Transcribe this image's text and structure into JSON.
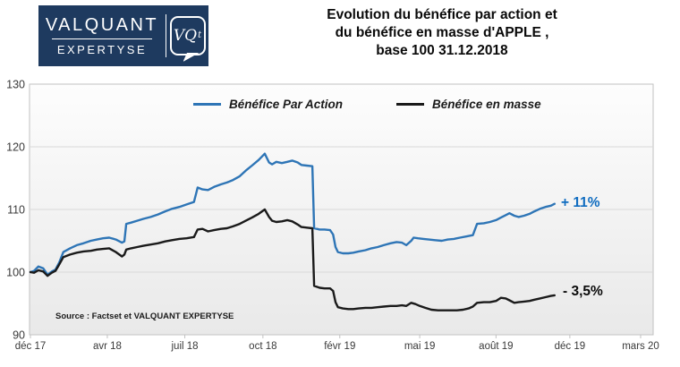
{
  "header": {
    "logo": {
      "line1": "VALQUANT",
      "line2": "EXPERTYSE",
      "emblem_text": "VQ",
      "emblem_sup": "t"
    },
    "title_lines": [
      "Evolution du bénéfice par action et",
      "du bénéfice en masse d'APPLE ,",
      "base 100 31.12.2018"
    ]
  },
  "colors": {
    "logo_navy": "#1e3a5f",
    "series_blue": "#2e75b6",
    "series_black": "#1a1a1a",
    "annotation_blue": "#0f6cc0",
    "annotation_black": "#0a0a0a",
    "gridline": "#d9d9d9",
    "plot_border": "#c2c2c2",
    "axis_text": "#3a3a3a"
  },
  "chart_data": {
    "type": "line",
    "title": "Evolution du bénéfice par action et du bénéfice en masse d'APPLE , base 100 31.12.2018",
    "xlabel": "",
    "ylabel": "",
    "ylim": [
      90,
      130
    ],
    "y_ticks": [
      90,
      100,
      110,
      120,
      130
    ],
    "grid": "horizontal",
    "legend_position": "top-center",
    "x_tick_labels": [
      "déc 17",
      "avr 18",
      "juil 18",
      "oct 18",
      "févr 19",
      "mai 19",
      "août 19",
      "déc 19",
      "mars 20"
    ],
    "x_tick_pos_pct": [
      0,
      12.6,
      25.3,
      38.1,
      50.7,
      63.8,
      76.3,
      88.4,
      100
    ],
    "source_note": "Source : Factset et VALQUANT EXPERTYSE",
    "series": [
      {
        "name": "Bénéfice Par Action",
        "color": "#2e75b6",
        "end_label": "+ 11%",
        "points": [
          [
            0,
            100
          ],
          [
            0.6,
            100.2
          ],
          [
            1.3,
            100.9
          ],
          [
            2.1,
            100.6
          ],
          [
            2.8,
            99.6
          ],
          [
            3.5,
            100.1
          ],
          [
            4.1,
            100.4
          ],
          [
            4.7,
            101.5
          ],
          [
            5.4,
            103.2
          ],
          [
            6.5,
            103.8
          ],
          [
            7.6,
            104.3
          ],
          [
            8.7,
            104.6
          ],
          [
            9.9,
            105
          ],
          [
            10.9,
            105.2
          ],
          [
            11.9,
            105.4
          ],
          [
            12.9,
            105.5
          ],
          [
            14,
            105.2
          ],
          [
            15,
            104.7
          ],
          [
            15.4,
            104.9
          ],
          [
            15.7,
            107.7
          ],
          [
            16.5,
            107.9
          ],
          [
            17.5,
            108.2
          ],
          [
            18.5,
            108.5
          ],
          [
            19.7,
            108.8
          ],
          [
            20.9,
            109.2
          ],
          [
            22.1,
            109.7
          ],
          [
            23.2,
            110.1
          ],
          [
            24.4,
            110.4
          ],
          [
            25.6,
            110.8
          ],
          [
            26.8,
            111.2
          ],
          [
            27.4,
            113.5
          ],
          [
            28.2,
            113.2
          ],
          [
            29.1,
            113.1
          ],
          [
            30.1,
            113.6
          ],
          [
            31.2,
            114
          ],
          [
            32.2,
            114.3
          ],
          [
            33.2,
            114.7
          ],
          [
            34.3,
            115.3
          ],
          [
            35.3,
            116.2
          ],
          [
            36.3,
            117
          ],
          [
            37.4,
            117.9
          ],
          [
            38.4,
            118.9
          ],
          [
            39.1,
            117.5
          ],
          [
            39.6,
            117.2
          ],
          [
            40.3,
            117.6
          ],
          [
            41.2,
            117.4
          ],
          [
            42.1,
            117.6
          ],
          [
            42.9,
            117.8
          ],
          [
            43.8,
            117.5
          ],
          [
            44.4,
            117.1
          ],
          [
            45.3,
            117
          ],
          [
            46.2,
            116.9
          ],
          [
            46.5,
            107
          ],
          [
            47.4,
            106.8
          ],
          [
            48.2,
            106.8
          ],
          [
            49.1,
            106.7
          ],
          [
            49.6,
            106
          ],
          [
            50,
            104
          ],
          [
            50.4,
            103.2
          ],
          [
            51.2,
            103
          ],
          [
            52.1,
            103
          ],
          [
            52.9,
            103.1
          ],
          [
            53.8,
            103.3
          ],
          [
            54.9,
            103.5
          ],
          [
            55.9,
            103.8
          ],
          [
            56.9,
            104
          ],
          [
            57.9,
            104.3
          ],
          [
            59,
            104.6
          ],
          [
            60,
            104.8
          ],
          [
            60.9,
            104.7
          ],
          [
            61.6,
            104.3
          ],
          [
            62.4,
            105
          ],
          [
            62.8,
            105.5
          ],
          [
            63.5,
            105.4
          ],
          [
            64.4,
            105.3
          ],
          [
            65.3,
            105.2
          ],
          [
            66.3,
            105.1
          ],
          [
            67.4,
            105
          ],
          [
            68.4,
            105.2
          ],
          [
            69.4,
            105.3
          ],
          [
            70.4,
            105.5
          ],
          [
            71.5,
            105.7
          ],
          [
            72.5,
            105.9
          ],
          [
            73.2,
            107.7
          ],
          [
            74.3,
            107.8
          ],
          [
            75.3,
            108
          ],
          [
            76.3,
            108.3
          ],
          [
            77.1,
            108.7
          ],
          [
            77.9,
            109.1
          ],
          [
            78.5,
            109.4
          ],
          [
            79.3,
            109
          ],
          [
            80,
            108.8
          ],
          [
            80.9,
            109
          ],
          [
            81.8,
            109.3
          ],
          [
            82.6,
            109.7
          ],
          [
            83.5,
            110.1
          ],
          [
            84.4,
            110.4
          ],
          [
            85.3,
            110.6
          ],
          [
            85.9,
            110.9
          ]
        ]
      },
      {
        "name": "Bénéfice en masse",
        "color": "#1a1a1a",
        "end_label": "- 3,5%",
        "points": [
          [
            0,
            100
          ],
          [
            0.6,
            99.9
          ],
          [
            1.3,
            100.3
          ],
          [
            2.1,
            100.1
          ],
          [
            2.8,
            99.4
          ],
          [
            3.5,
            99.9
          ],
          [
            4.1,
            100.2
          ],
          [
            4.7,
            101.2
          ],
          [
            5.4,
            102.4
          ],
          [
            6.5,
            102.8
          ],
          [
            7.6,
            103.1
          ],
          [
            8.7,
            103.3
          ],
          [
            9.9,
            103.4
          ],
          [
            10.9,
            103.6
          ],
          [
            11.9,
            103.7
          ],
          [
            12.9,
            103.8
          ],
          [
            14,
            103.2
          ],
          [
            15,
            102.5
          ],
          [
            15.4,
            102.8
          ],
          [
            15.7,
            103.6
          ],
          [
            16.5,
            103.8
          ],
          [
            17.5,
            104
          ],
          [
            18.5,
            104.2
          ],
          [
            19.7,
            104.4
          ],
          [
            20.9,
            104.6
          ],
          [
            22.1,
            104.9
          ],
          [
            23.2,
            105.1
          ],
          [
            24.4,
            105.3
          ],
          [
            25.6,
            105.4
          ],
          [
            26.8,
            105.6
          ],
          [
            27.4,
            106.8
          ],
          [
            28.2,
            106.9
          ],
          [
            29.1,
            106.5
          ],
          [
            30.1,
            106.7
          ],
          [
            31.2,
            106.9
          ],
          [
            32.2,
            107
          ],
          [
            33.2,
            107.3
          ],
          [
            34.3,
            107.7
          ],
          [
            35.3,
            108.2
          ],
          [
            36.3,
            108.7
          ],
          [
            37.4,
            109.3
          ],
          [
            38.4,
            110
          ],
          [
            39.1,
            108.8
          ],
          [
            39.6,
            108.2
          ],
          [
            40.3,
            108
          ],
          [
            41.2,
            108.1
          ],
          [
            42.1,
            108.3
          ],
          [
            42.9,
            108.1
          ],
          [
            43.8,
            107.6
          ],
          [
            44.4,
            107.2
          ],
          [
            45.3,
            107.1
          ],
          [
            46.2,
            107
          ],
          [
            46.5,
            97.8
          ],
          [
            47.4,
            97.5
          ],
          [
            48.2,
            97.4
          ],
          [
            49.1,
            97.4
          ],
          [
            49.6,
            97
          ],
          [
            50,
            95.2
          ],
          [
            50.4,
            94.4
          ],
          [
            51.2,
            94.2
          ],
          [
            52.1,
            94.1
          ],
          [
            52.9,
            94.1
          ],
          [
            53.8,
            94.2
          ],
          [
            54.9,
            94.3
          ],
          [
            55.9,
            94.3
          ],
          [
            56.9,
            94.4
          ],
          [
            57.9,
            94.5
          ],
          [
            59,
            94.6
          ],
          [
            60,
            94.6
          ],
          [
            60.9,
            94.7
          ],
          [
            61.6,
            94.6
          ],
          [
            62.4,
            95.1
          ],
          [
            63.1,
            94.9
          ],
          [
            63.8,
            94.6
          ],
          [
            64.7,
            94.3
          ],
          [
            65.7,
            94
          ],
          [
            66.8,
            93.9
          ],
          [
            67.8,
            93.9
          ],
          [
            68.8,
            93.9
          ],
          [
            69.9,
            93.9
          ],
          [
            70.9,
            94
          ],
          [
            71.8,
            94.2
          ],
          [
            72.5,
            94.5
          ],
          [
            73.2,
            95.1
          ],
          [
            74.3,
            95.2
          ],
          [
            75.3,
            95.2
          ],
          [
            76.3,
            95.4
          ],
          [
            77.1,
            95.9
          ],
          [
            77.9,
            95.8
          ],
          [
            78.5,
            95.5
          ],
          [
            79.3,
            95.1
          ],
          [
            80,
            95.2
          ],
          [
            80.9,
            95.3
          ],
          [
            81.8,
            95.4
          ],
          [
            82.6,
            95.6
          ],
          [
            83.5,
            95.8
          ],
          [
            84.4,
            96
          ],
          [
            85.3,
            96.2
          ],
          [
            85.9,
            96.3
          ]
        ]
      }
    ]
  },
  "annotations": {
    "blue_end_label": "+ 11%",
    "black_end_label": "- 3,5%"
  }
}
